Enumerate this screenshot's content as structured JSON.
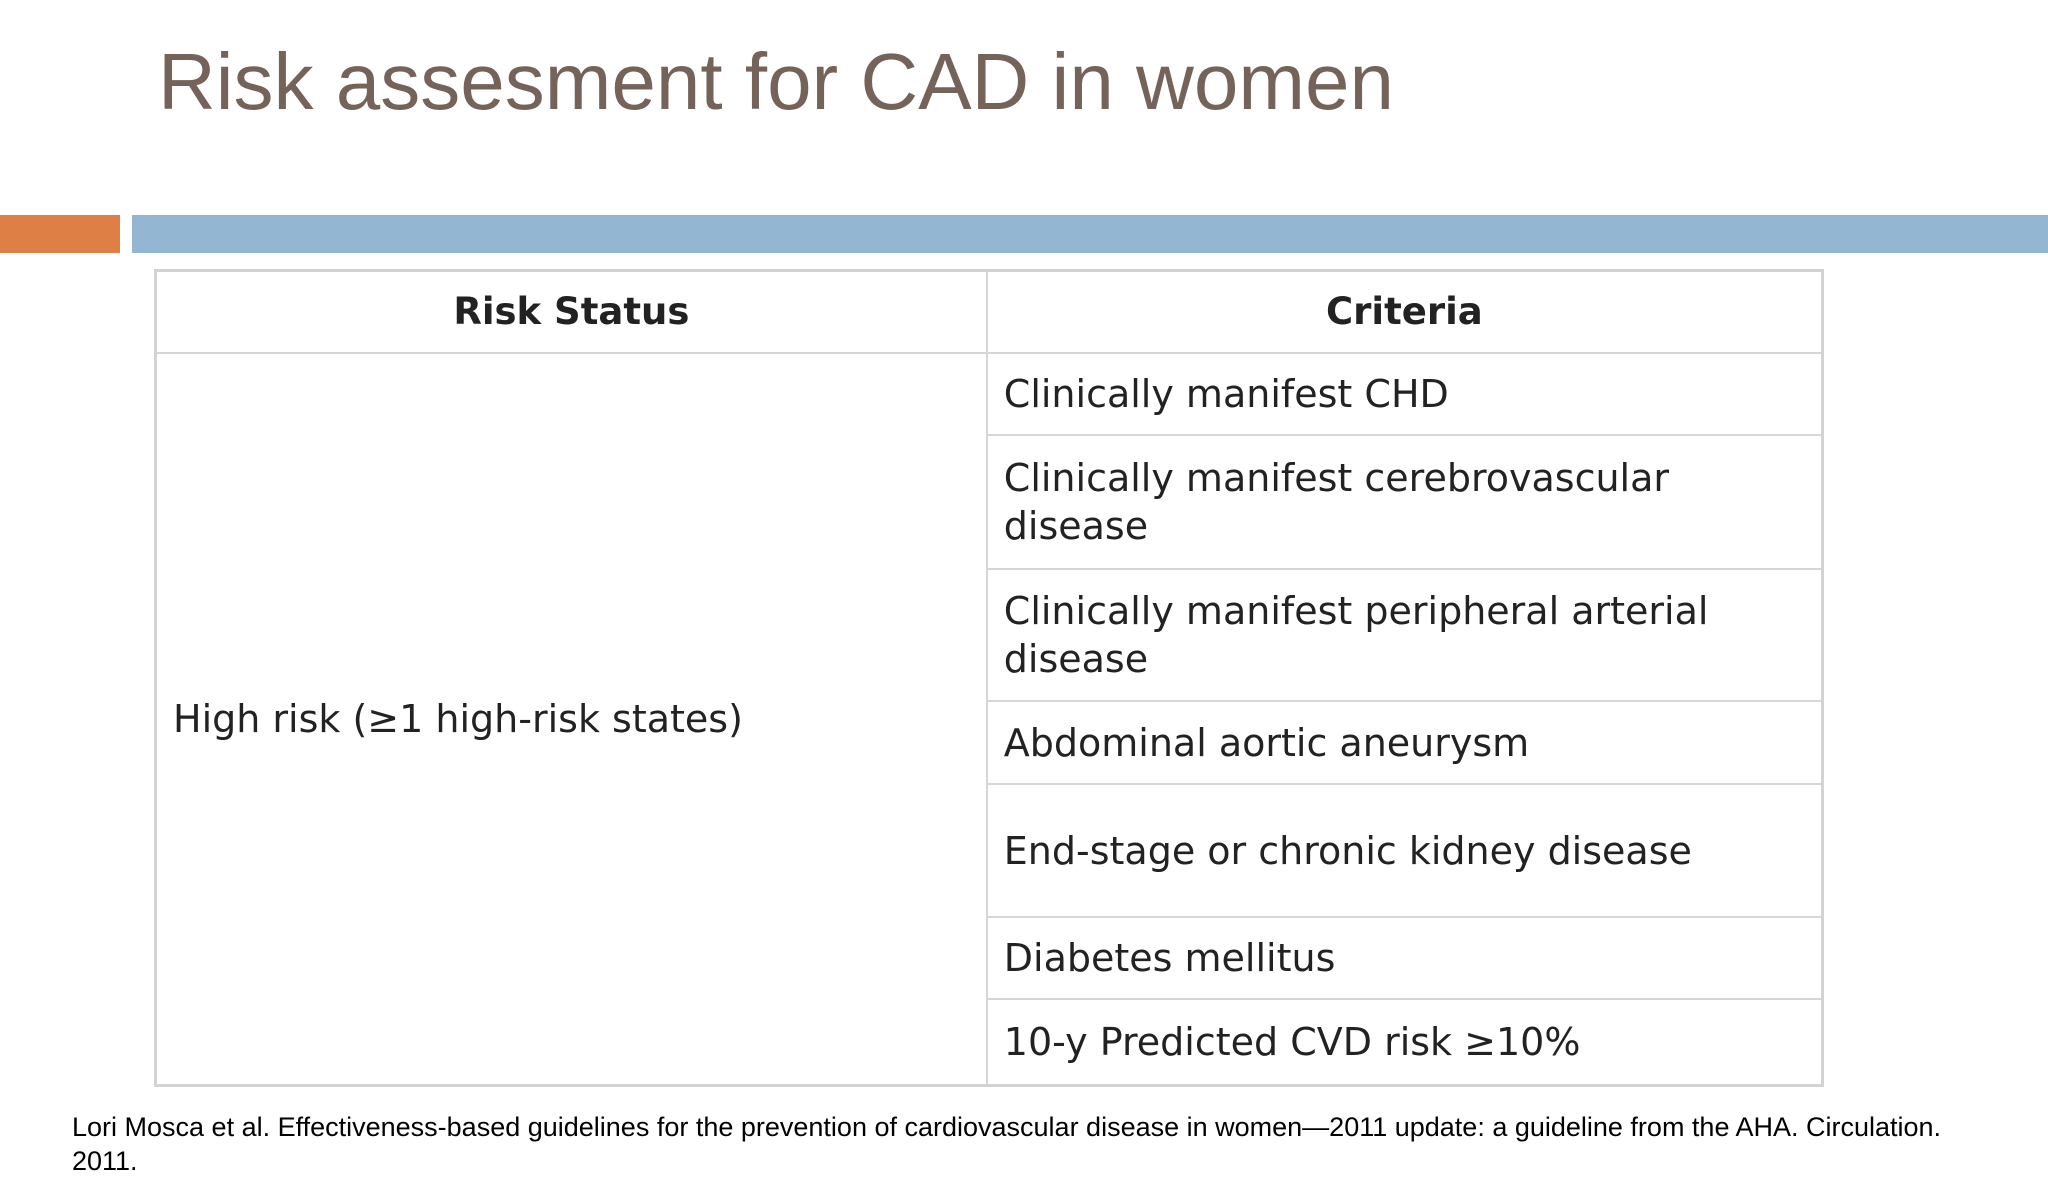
{
  "header": {
    "title": "Risk assesment for CAD in women"
  },
  "table": {
    "columns": [
      "Risk Status",
      "Criteria"
    ],
    "risk_status": "High risk (≥1 high-risk states)",
    "criteria": [
      "Clinically manifest CHD",
      "Clinically manifest cerebrovascular disease",
      "Clinically manifest peripheral arterial disease",
      "Abdominal aortic aneurysm",
      "End-stage or chronic kidney disease",
      "Diabetes mellitus",
      "10-y Predicted CVD risk ≥10%"
    ]
  },
  "footnote": "Lori Mosca et al. Effectiveness-based guidelines for the prevention of cardiovascular disease in women—2011 update: a guideline from the AHA. Circulation. 2011."
}
